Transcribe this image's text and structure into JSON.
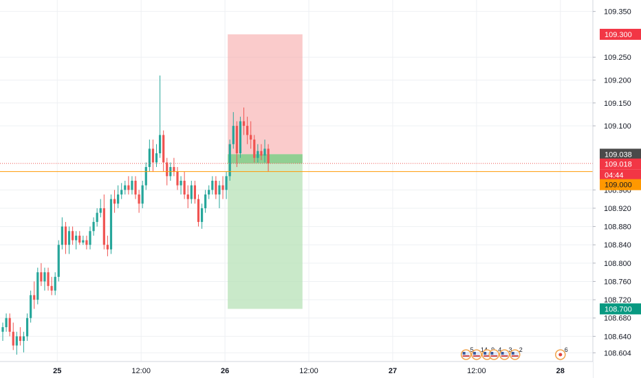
{
  "chart_data": {
    "type": "candlestick",
    "y_axis": {
      "ylim": [
        108.585,
        109.375
      ],
      "ticks": [
        "109.350",
        "109.250",
        "109.200",
        "109.150",
        "109.100",
        "108.960",
        "108.920",
        "108.880",
        "108.840",
        "108.800",
        "108.760",
        "108.720",
        "108.680",
        "108.640",
        "108.604"
      ]
    },
    "x_axis": {
      "ticks": [
        {
          "label": "25",
          "bar": 16
        },
        {
          "label": "12:00",
          "bar": 40
        },
        {
          "label": "26",
          "bar": 64
        },
        {
          "label": "12:00",
          "bar": 88
        },
        {
          "label": "27",
          "bar": 112
        },
        {
          "label": "12:00",
          "bar": 136
        },
        {
          "label": "28",
          "bar": 160
        }
      ]
    },
    "bars_per_day": 48,
    "candles": [
      [
        108.65,
        108.67,
        108.63,
        108.66
      ],
      [
        108.66,
        108.69,
        108.65,
        108.68
      ],
      [
        108.68,
        108.69,
        108.64,
        108.65
      ],
      [
        108.65,
        108.67,
        108.61,
        108.62
      ],
      [
        108.62,
        108.65,
        108.6,
        108.64
      ],
      [
        108.64,
        108.66,
        108.62,
        108.63
      ],
      [
        108.63,
        108.65,
        108.605,
        108.64
      ],
      [
        108.64,
        108.69,
        108.63,
        108.68
      ],
      [
        108.68,
        108.74,
        108.67,
        108.73
      ],
      [
        108.73,
        108.76,
        108.7,
        108.72
      ],
      [
        108.72,
        108.79,
        108.71,
        108.78
      ],
      [
        108.78,
        108.8,
        108.75,
        108.76
      ],
      [
        108.76,
        108.79,
        108.74,
        108.78
      ],
      [
        108.78,
        108.79,
        108.74,
        108.75
      ],
      [
        108.75,
        108.77,
        108.73,
        108.74
      ],
      [
        108.74,
        108.78,
        108.73,
        108.77
      ],
      [
        108.77,
        108.85,
        108.76,
        108.84
      ],
      [
        108.84,
        108.9,
        108.83,
        108.88
      ],
      [
        108.88,
        108.89,
        108.82,
        108.84
      ],
      [
        108.84,
        108.88,
        108.82,
        108.87
      ],
      [
        108.87,
        108.88,
        108.84,
        108.85
      ],
      [
        108.85,
        108.87,
        108.83,
        108.86
      ],
      [
        108.86,
        108.87,
        108.84,
        108.845
      ],
      [
        108.845,
        108.86,
        108.84,
        108.85
      ],
      [
        108.85,
        108.86,
        108.83,
        108.84
      ],
      [
        108.84,
        108.88,
        108.83,
        108.87
      ],
      [
        108.87,
        108.9,
        108.86,
        108.89
      ],
      [
        108.89,
        108.92,
        108.88,
        108.91
      ],
      [
        108.91,
        108.94,
        108.9,
        108.92
      ],
      [
        108.92,
        108.95,
        108.83,
        108.84
      ],
      [
        108.84,
        108.86,
        108.815,
        108.83
      ],
      [
        108.83,
        108.95,
        108.82,
        108.94
      ],
      [
        108.94,
        108.96,
        108.91,
        108.93
      ],
      [
        108.93,
        108.97,
        108.92,
        108.95
      ],
      [
        108.95,
        108.975,
        108.94,
        108.96
      ],
      [
        108.96,
        108.98,
        108.95,
        108.97
      ],
      [
        108.97,
        108.99,
        108.95,
        108.96
      ],
      [
        108.96,
        108.99,
        108.95,
        108.98
      ],
      [
        108.98,
        108.99,
        108.94,
        108.95
      ],
      [
        108.95,
        108.96,
        108.91,
        108.93
      ],
      [
        108.93,
        108.98,
        108.92,
        108.97
      ],
      [
        108.97,
        109.02,
        108.96,
        109.01
      ],
      [
        109.01,
        109.07,
        109.0,
        109.05
      ],
      [
        109.05,
        109.07,
        109.0,
        109.02
      ],
      [
        109.02,
        109.06,
        109.01,
        109.04
      ],
      [
        109.04,
        109.21,
        109.03,
        109.08
      ],
      [
        109.08,
        109.09,
        109.0,
        109.02
      ],
      [
        109.02,
        109.03,
        108.97,
        108.99
      ],
      [
        108.99,
        109.02,
        108.98,
        109.01
      ],
      [
        109.01,
        109.03,
        108.99,
        109.0
      ],
      [
        109.0,
        109.01,
        108.96,
        108.97
      ],
      [
        108.97,
        108.99,
        108.95,
        108.98
      ],
      [
        108.98,
        109.0,
        108.94,
        108.95
      ],
      [
        108.95,
        108.97,
        108.92,
        108.94
      ],
      [
        108.94,
        108.98,
        108.93,
        108.97
      ],
      [
        108.97,
        108.98,
        108.93,
        108.94
      ],
      [
        108.94,
        108.95,
        108.88,
        108.89
      ],
      [
        108.89,
        108.93,
        108.875,
        108.92
      ],
      [
        108.92,
        108.96,
        108.91,
        108.95
      ],
      [
        108.95,
        108.97,
        108.94,
        108.96
      ],
      [
        108.96,
        108.99,
        108.95,
        108.98
      ],
      [
        108.98,
        108.99,
        108.94,
        108.95
      ],
      [
        108.95,
        108.98,
        108.92,
        108.97
      ],
      [
        108.97,
        108.99,
        108.94,
        108.96
      ],
      [
        108.96,
        109.0,
        108.94,
        108.99
      ],
      [
        108.99,
        109.07,
        108.98,
        109.06
      ],
      [
        109.06,
        109.13,
        109.05,
        109.1
      ],
      [
        109.1,
        109.11,
        109.01,
        109.04
      ],
      [
        109.04,
        109.12,
        109.03,
        109.11
      ],
      [
        109.11,
        109.14,
        109.08,
        109.1
      ],
      [
        109.1,
        109.12,
        109.06,
        109.08
      ],
      [
        109.08,
        109.11,
        109.05,
        109.07
      ],
      [
        109.07,
        109.08,
        109.02,
        109.03
      ],
      [
        109.03,
        109.06,
        109.02,
        109.045
      ],
      [
        109.045,
        109.06,
        109.025,
        109.035
      ],
      [
        109.035,
        109.07,
        109.02,
        109.05
      ],
      [
        109.05,
        109.06,
        109.0,
        109.018
      ]
    ],
    "reward_top": 109.3,
    "entry": 109.038,
    "current_price": 109.018,
    "alert_level": 109.0,
    "target": 108.7,
    "position_bars": [
      64,
      85
    ],
    "badges": {
      "stop": "109.300",
      "entry": "109.038",
      "current": "109.018",
      "countdown": "04:44",
      "alert": "109.000",
      "target": "108.700"
    },
    "events": [
      {
        "bar": 133,
        "count": "5"
      },
      {
        "bar": 136,
        "count": "14"
      },
      {
        "bar": 139,
        "count": "9"
      },
      {
        "bar": 141,
        "count": "4"
      },
      {
        "bar": 144,
        "count": "3"
      },
      {
        "bar": 147,
        "count": "2"
      },
      {
        "bar": 160,
        "count": "6"
      }
    ],
    "colors": {
      "up": "#26a69a",
      "down": "#ef5350",
      "stop_zone": "#f7a9a8",
      "target_zone": "#b2dfb2",
      "entry_zone": "#89cc8c",
      "alert_line": "#ff9800",
      "price_line": "#ef5350",
      "entry_badge": "#4a4a4a",
      "stop_badge": "#f23645",
      "target_badge": "#089981",
      "grid": "#eef0f3"
    }
  }
}
